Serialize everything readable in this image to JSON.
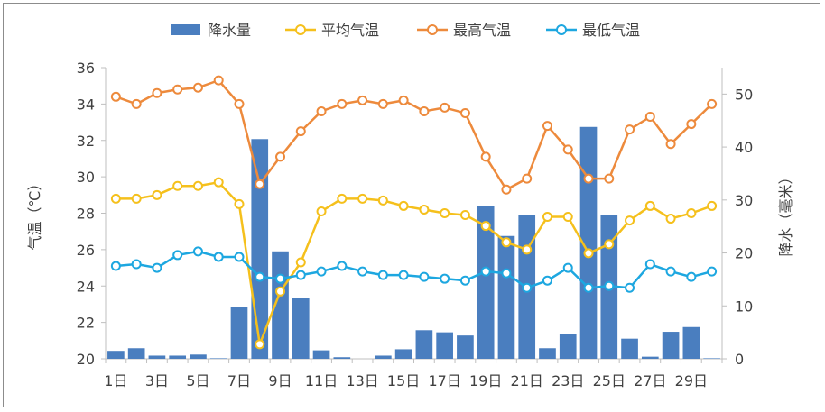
{
  "chart_data": {
    "type": "bar+line",
    "categories": [
      "1日",
      "2日",
      "3日",
      "4日",
      "5日",
      "6日",
      "7日",
      "8日",
      "9日",
      "10日",
      "11日",
      "12日",
      "13日",
      "14日",
      "15日",
      "16日",
      "17日",
      "18日",
      "19日",
      "20日",
      "21日",
      "22日",
      "23日",
      "24日",
      "25日",
      "26日",
      "27日",
      "28日",
      "29日",
      "30日"
    ],
    "x_tick_labels": [
      "1日",
      "3日",
      "5日",
      "7日",
      "9日",
      "11日",
      "13日",
      "15日",
      "17日",
      "19日",
      "21日",
      "23日",
      "25日",
      "27日",
      "29日"
    ],
    "y_left": {
      "label": "气温（℃）",
      "min": 20,
      "max": 36,
      "ticks": [
        20,
        22,
        24,
        26,
        28,
        30,
        32,
        34,
        36
      ]
    },
    "y_right": {
      "label": "降水（毫米）",
      "min": 0,
      "max": 55,
      "ticks": [
        0,
        10,
        20,
        30,
        40,
        50
      ]
    },
    "series": [
      {
        "name": "降水量",
        "type": "bar",
        "axis": "right",
        "color": "#4a7ebf",
        "values": [
          1.5,
          2.0,
          0.6,
          0.6,
          0.8,
          0.1,
          9.8,
          41.5,
          20.3,
          11.5,
          1.6,
          0.3,
          0.0,
          0.6,
          1.8,
          5.4,
          5.0,
          4.4,
          28.8,
          23.2,
          27.2,
          2.0,
          4.6,
          43.8,
          27.2,
          3.8,
          0.4,
          5.1,
          6.0,
          0.1
        ]
      },
      {
        "name": "平均气温",
        "type": "line",
        "axis": "left",
        "color": "#f5c01c",
        "values": [
          28.8,
          28.8,
          29.0,
          29.5,
          29.5,
          29.7,
          28.5,
          20.8,
          23.7,
          25.3,
          28.1,
          28.8,
          28.8,
          28.7,
          28.4,
          28.2,
          28.0,
          27.9,
          27.3,
          26.4,
          26.0,
          27.8,
          27.8,
          25.8,
          26.3,
          27.6,
          28.4,
          27.7,
          28.0,
          28.4
        ]
      },
      {
        "name": "最高气温",
        "type": "line",
        "axis": "left",
        "color": "#ed8a3c",
        "values": [
          34.4,
          34.0,
          34.6,
          34.8,
          34.9,
          35.3,
          34.0,
          29.6,
          31.1,
          32.5,
          33.6,
          34.0,
          34.2,
          34.0,
          34.2,
          33.6,
          33.8,
          33.5,
          31.1,
          29.3,
          29.9,
          32.8,
          31.5,
          29.9,
          29.9,
          32.6,
          33.3,
          31.8,
          32.9,
          34.0
        ]
      },
      {
        "name": "最低气温",
        "type": "line",
        "axis": "left",
        "color": "#1da7e0",
        "values": [
          25.1,
          25.2,
          25.0,
          25.7,
          25.9,
          25.6,
          25.6,
          24.5,
          24.4,
          24.6,
          24.8,
          25.1,
          24.8,
          24.6,
          24.6,
          24.5,
          24.4,
          24.3,
          24.8,
          24.7,
          23.9,
          24.3,
          25.0,
          23.9,
          24.0,
          23.9,
          25.2,
          24.8,
          24.5,
          24.8
        ]
      }
    ],
    "legend": {
      "position": "top",
      "entries": [
        "降水量",
        "平均气温",
        "最高气温",
        "最低气温"
      ]
    },
    "grid": false
  }
}
